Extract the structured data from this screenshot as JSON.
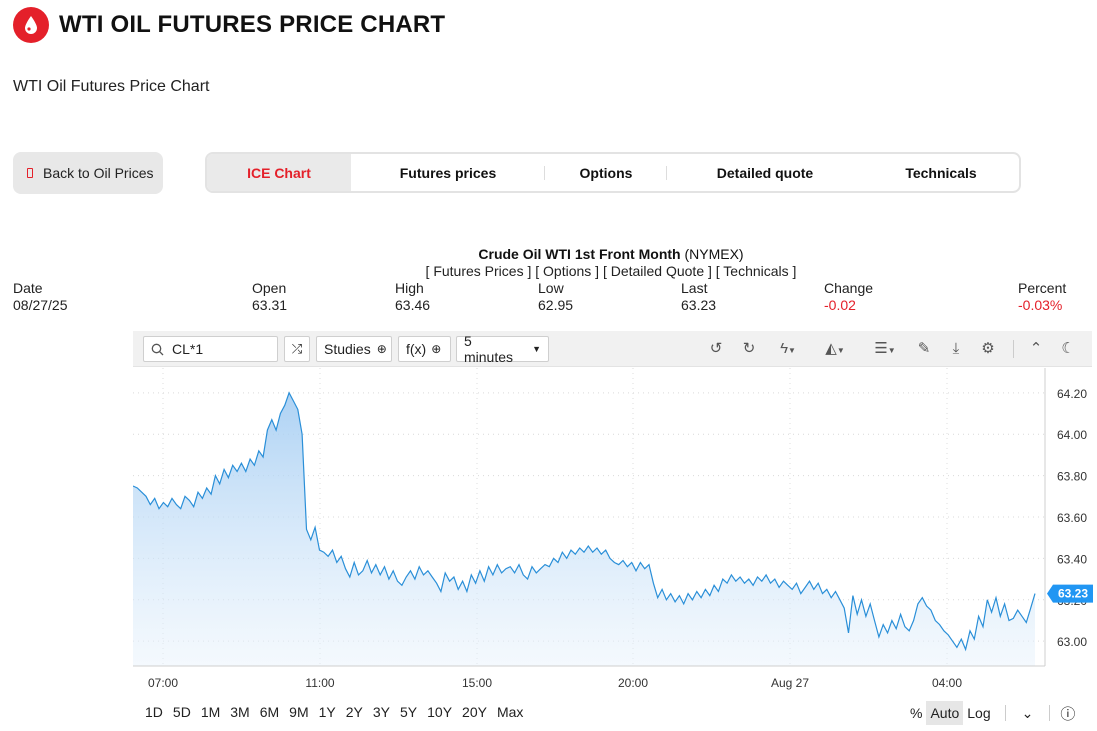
{
  "header": {
    "title": "WTI OIL FUTURES PRICE CHART",
    "subtitle": "WTI Oil Futures Price Chart"
  },
  "back_button": {
    "label": "Back to Oil Prices"
  },
  "tabs": [
    {
      "label": "ICE Chart",
      "active": true
    },
    {
      "label": "Futures prices"
    },
    {
      "label": "Options"
    },
    {
      "label": "Detailed quote"
    },
    {
      "label": "Technicals"
    }
  ],
  "quote": {
    "name": "Crude Oil WTI 1st Front Month",
    "exchange": "(NYMEX)",
    "links": "[ Futures Prices ] [ Options ] [ Detailed Quote ] [ Technicals ]",
    "fields": [
      {
        "label": "Date",
        "value": "08/27/25"
      },
      {
        "label": "Open",
        "value": "63.31"
      },
      {
        "label": "High",
        "value": "63.46"
      },
      {
        "label": "Low",
        "value": "62.95"
      },
      {
        "label": "Last",
        "value": "63.23"
      },
      {
        "label": "Change",
        "value": "-0.02"
      },
      {
        "label": "Percent",
        "value": "-0.03%"
      }
    ]
  },
  "toolbar": {
    "symbol": "CL*1",
    "studies_label": "Studies",
    "fx_label": "f(x)",
    "interval": "5 minutes"
  },
  "range_buttons": [
    "1D",
    "5D",
    "1M",
    "3M",
    "6M",
    "9M",
    "1Y",
    "2Y",
    "3Y",
    "5Y",
    "10Y",
    "20Y",
    "Max"
  ],
  "scale_options": [
    "%",
    "Auto",
    "Log"
  ],
  "colors": {
    "brand": "#e4202a",
    "line": "#2a8fd8",
    "label": "#2196f3"
  },
  "chart_data": {
    "type": "area",
    "x_ticks": [
      "07:00",
      "11:00",
      "15:00",
      "20:00",
      "Aug 27",
      "04:00"
    ],
    "y_ticks": [
      64.2,
      64.0,
      63.8,
      63.6,
      63.4,
      63.2,
      63.0
    ],
    "ylim": [
      62.88,
      64.32
    ],
    "last_value_label": "63.23",
    "grid": true,
    "series": [
      {
        "values": [
          63.75,
          63.74,
          63.72,
          63.7,
          63.66,
          63.69,
          63.64,
          63.67,
          63.65,
          63.69,
          63.66,
          63.64,
          63.7,
          63.68,
          63.65,
          63.72,
          63.69,
          63.74,
          63.71,
          63.8,
          63.76,
          63.83,
          63.79,
          63.85,
          63.82,
          63.86,
          63.82,
          63.88,
          63.85,
          63.92,
          63.89,
          64.02,
          64.07,
          64.02,
          64.1,
          64.14,
          64.2,
          64.16,
          64.12,
          64.0,
          63.54,
          63.49,
          63.55,
          63.44,
          63.43,
          63.41,
          63.44,
          63.38,
          63.41,
          63.35,
          63.31,
          63.38,
          63.32,
          63.34,
          63.39,
          63.33,
          63.37,
          63.32,
          63.36,
          63.3,
          63.34,
          63.29,
          63.27,
          63.31,
          63.34,
          63.3,
          63.36,
          63.32,
          63.34,
          63.31,
          63.28,
          63.24,
          63.33,
          63.29,
          63.31,
          63.25,
          63.29,
          63.24,
          63.32,
          63.28,
          63.34,
          63.29,
          63.36,
          63.32,
          63.37,
          63.33,
          63.35,
          63.36,
          63.33,
          63.37,
          63.32,
          63.3,
          63.36,
          63.33,
          63.35,
          63.37,
          63.36,
          63.4,
          63.38,
          63.43,
          63.4,
          63.44,
          63.42,
          63.45,
          63.43,
          63.46,
          63.43,
          63.45,
          63.42,
          63.44,
          63.4,
          63.38,
          63.37,
          63.39,
          63.36,
          63.38,
          63.34,
          63.38,
          63.35,
          63.37,
          63.28,
          63.21,
          63.25,
          63.2,
          63.23,
          63.19,
          63.22,
          63.18,
          63.23,
          63.2,
          63.24,
          63.21,
          63.25,
          63.22,
          63.27,
          63.24,
          63.3,
          63.28,
          63.32,
          63.29,
          63.31,
          63.28,
          63.3,
          63.27,
          63.31,
          63.29,
          63.32,
          63.28,
          63.3,
          63.26,
          63.29,
          63.27,
          63.25,
          63.28,
          63.23,
          63.26,
          63.29,
          63.25,
          63.28,
          63.23,
          63.25,
          63.21,
          63.24,
          63.2,
          63.16,
          63.04,
          63.22,
          63.13,
          63.2,
          63.12,
          63.18,
          63.1,
          63.02,
          63.08,
          63.04,
          63.1,
          63.06,
          63.13,
          63.07,
          63.05,
          63.1,
          63.18,
          63.21,
          63.17,
          63.15,
          63.1,
          63.08,
          63.05,
          63.03,
          63.0,
          62.97,
          63.01,
          62.96,
          63.05,
          63.01,
          63.12,
          63.07,
          63.2,
          63.14,
          63.21,
          63.12,
          63.18,
          63.1,
          63.11,
          63.15,
          63.12,
          63.09,
          63.16,
          63.23
        ]
      }
    ]
  }
}
